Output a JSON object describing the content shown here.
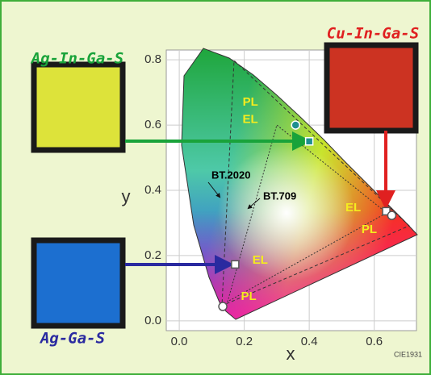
{
  "chart_data": {
    "type": "scatter",
    "x_label": "x",
    "y_label": "y",
    "xlim": [
      -0.04,
      0.73
    ],
    "ylim": [
      -0.03,
      0.83
    ],
    "xticks": [
      {
        "value": 0,
        "label": "0.0"
      },
      {
        "value": 0.2,
        "label": "0.2"
      },
      {
        "value": 0.4,
        "label": "0.4"
      },
      {
        "value": 0.6,
        "label": "0.6"
      }
    ],
    "yticks": [
      {
        "value": 0,
        "label": "0.0"
      },
      {
        "value": 0.2,
        "label": "0.2"
      },
      {
        "value": 0.4,
        "label": "0.4"
      },
      {
        "value": 0.6,
        "label": "0.6"
      },
      {
        "value": 0.8,
        "label": "0.8"
      }
    ],
    "grid": true,
    "series": [
      {
        "name": "Ag-In-Ga-S",
        "color": "#19a33a",
        "point_labels": [
          "PL",
          "EL"
        ],
        "x": [
          0.358,
          0.4
        ],
        "values": [
          0.6,
          0.55
        ]
      },
      {
        "name": "Cu-In-Ga-S",
        "color": "#e02020",
        "point_labels": [
          "EL",
          "PL"
        ],
        "x": [
          0.637,
          0.654
        ],
        "values": [
          0.336,
          0.323
        ]
      },
      {
        "name": "Ag-Ga-S",
        "color": "#2a2aa0",
        "point_labels": [
          "EL",
          "PL"
        ],
        "x": [
          0.172,
          0.134
        ],
        "values": [
          0.173,
          0.044
        ]
      }
    ],
    "annotations": [
      "BT.2020",
      "BT.709",
      "CIE1931"
    ]
  }
}
